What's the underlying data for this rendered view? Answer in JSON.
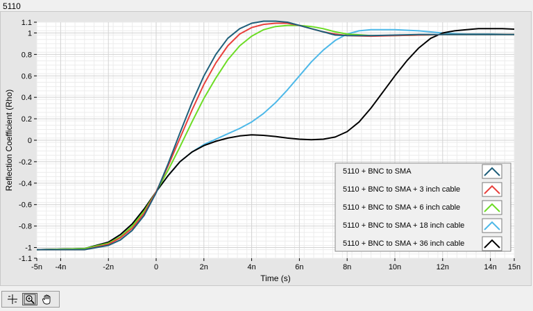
{
  "graph": {
    "title": "5110"
  },
  "chart_data": {
    "type": "line",
    "title": "5110",
    "xlabel": "Time (s)",
    "ylabel": "Reflection Coefficient (Rho)",
    "xlim": [
      -5,
      15
    ],
    "ylim": [
      -1.1,
      1.1
    ],
    "grid": true,
    "legend_position": "bottom-right",
    "x_ticks": [
      {
        "value": -5,
        "label": "-5n"
      },
      {
        "value": -4,
        "label": "-4n"
      },
      {
        "value": -2,
        "label": "-2n"
      },
      {
        "value": 0,
        "label": "0"
      },
      {
        "value": 2,
        "label": "2n"
      },
      {
        "value": 4,
        "label": "4n"
      },
      {
        "value": 6,
        "label": "6n"
      },
      {
        "value": 8,
        "label": "8n"
      },
      {
        "value": 10,
        "label": "10n"
      },
      {
        "value": 12,
        "label": "12n"
      },
      {
        "value": 14,
        "label": "14n"
      },
      {
        "value": 15,
        "label": "15n"
      }
    ],
    "y_ticks": [
      {
        "value": 1.1,
        "label": "1.1"
      },
      {
        "value": 1,
        "label": "1"
      },
      {
        "value": 0.8,
        "label": "0.8"
      },
      {
        "value": 0.6,
        "label": "0.6"
      },
      {
        "value": 0.4,
        "label": "0.4"
      },
      {
        "value": 0.2,
        "label": "0.2"
      },
      {
        "value": 0,
        "label": "0"
      },
      {
        "value": -0.2,
        "label": "-0.2"
      },
      {
        "value": -0.4,
        "label": "-0.4"
      },
      {
        "value": -0.6,
        "label": "-0.6"
      },
      {
        "value": -0.8,
        "label": "-0.8"
      },
      {
        "value": -1,
        "label": "-1"
      },
      {
        "value": -1.1,
        "label": "-1.1"
      }
    ],
    "series": [
      {
        "name": "5110 + BNC to SMA",
        "color": "#1f5f7a",
        "x": [
          -5,
          -3,
          -2,
          -1.5,
          -1,
          -0.5,
          0,
          0.5,
          1,
          1.5,
          2,
          2.5,
          3,
          3.5,
          4,
          4.5,
          5,
          5.5,
          6,
          6.5,
          7,
          7.5,
          8,
          9,
          10,
          11,
          12,
          13,
          14,
          15
        ],
        "y": [
          -1.02,
          -1.02,
          -0.98,
          -0.93,
          -0.84,
          -0.7,
          -0.49,
          -0.22,
          0.07,
          0.35,
          0.6,
          0.8,
          0.95,
          1.04,
          1.09,
          1.11,
          1.11,
          1.1,
          1.07,
          1.04,
          1.01,
          0.98,
          0.975,
          0.975,
          0.98,
          0.985,
          0.985,
          0.985,
          0.985,
          0.985
        ]
      },
      {
        "name": "5110 + BNC to SMA + 3 inch cable",
        "color": "#e8403c",
        "x": [
          -5,
          -3,
          -2,
          -1.5,
          -1,
          -0.5,
          0,
          0.5,
          1,
          1.5,
          2,
          2.5,
          3,
          3.5,
          4,
          4.5,
          5,
          5.5,
          6,
          6.5,
          7,
          7.5,
          8,
          9,
          10,
          11,
          12,
          13,
          14,
          15
        ],
        "y": [
          -1.02,
          -1.02,
          -0.97,
          -0.91,
          -0.82,
          -0.68,
          -0.48,
          -0.24,
          0.02,
          0.28,
          0.52,
          0.72,
          0.88,
          0.99,
          1.05,
          1.08,
          1.09,
          1.09,
          1.07,
          1.04,
          1.01,
          0.99,
          0.975,
          0.97,
          0.975,
          0.98,
          0.985,
          0.985,
          0.985,
          0.985
        ]
      },
      {
        "name": "5110 + BNC to SMA + 6 inch cable",
        "color": "#6cdc24",
        "x": [
          -5,
          -3,
          -2,
          -1.5,
          -1,
          -0.5,
          0,
          0.5,
          1,
          1.5,
          2,
          2.5,
          3,
          3.5,
          4,
          4.5,
          5,
          5.5,
          6,
          6.5,
          7,
          7.5,
          8,
          9,
          10,
          11,
          12,
          13,
          14,
          15
        ],
        "y": [
          -1.02,
          -1.01,
          -0.96,
          -0.9,
          -0.8,
          -0.66,
          -0.48,
          -0.28,
          -0.06,
          0.17,
          0.39,
          0.58,
          0.75,
          0.88,
          0.97,
          1.03,
          1.06,
          1.07,
          1.07,
          1.06,
          1.04,
          1.01,
          0.99,
          0.975,
          0.975,
          0.98,
          0.985,
          0.985,
          0.985,
          0.985
        ]
      },
      {
        "name": "5110 + BNC to SMA + 18 inch cable",
        "color": "#4db8e8",
        "x": [
          -5,
          -3,
          -2,
          -1.5,
          -1,
          -0.5,
          0,
          0.5,
          1,
          1.5,
          2,
          2.5,
          3,
          3.5,
          4,
          4.5,
          5,
          5.5,
          6,
          6.5,
          7,
          7.5,
          8,
          8.5,
          9,
          10,
          11,
          12,
          13,
          14,
          15
        ],
        "y": [
          -1.02,
          -1.01,
          -0.95,
          -0.88,
          -0.78,
          -0.64,
          -0.48,
          -0.33,
          -0.2,
          -0.11,
          -0.04,
          0.01,
          0.06,
          0.11,
          0.17,
          0.25,
          0.35,
          0.47,
          0.6,
          0.73,
          0.84,
          0.93,
          0.99,
          1.02,
          1.03,
          1.03,
          1.02,
          1.0,
          0.99,
          0.99,
          0.985
        ]
      },
      {
        "name": "5110 + BNC to SMA + 36 inch cable",
        "color": "#000000",
        "x": [
          -5,
          -3,
          -2,
          -1.5,
          -1,
          -0.5,
          0,
          0.5,
          1,
          1.5,
          2,
          2.5,
          3,
          3.5,
          4,
          4.5,
          5,
          5.5,
          6,
          6.5,
          7,
          7.5,
          8,
          8.5,
          9,
          9.5,
          10,
          10.5,
          11,
          11.5,
          12,
          12.5,
          13,
          13.5,
          14,
          14.5,
          15
        ],
        "y": [
          -1.02,
          -1.01,
          -0.95,
          -0.88,
          -0.78,
          -0.64,
          -0.48,
          -0.33,
          -0.2,
          -0.11,
          -0.05,
          -0.01,
          0.02,
          0.04,
          0.05,
          0.045,
          0.035,
          0.02,
          0.01,
          0.005,
          0.01,
          0.03,
          0.08,
          0.17,
          0.3,
          0.45,
          0.6,
          0.74,
          0.86,
          0.95,
          1.0,
          1.02,
          1.03,
          1.04,
          1.04,
          1.04,
          1.035
        ]
      }
    ]
  }
}
